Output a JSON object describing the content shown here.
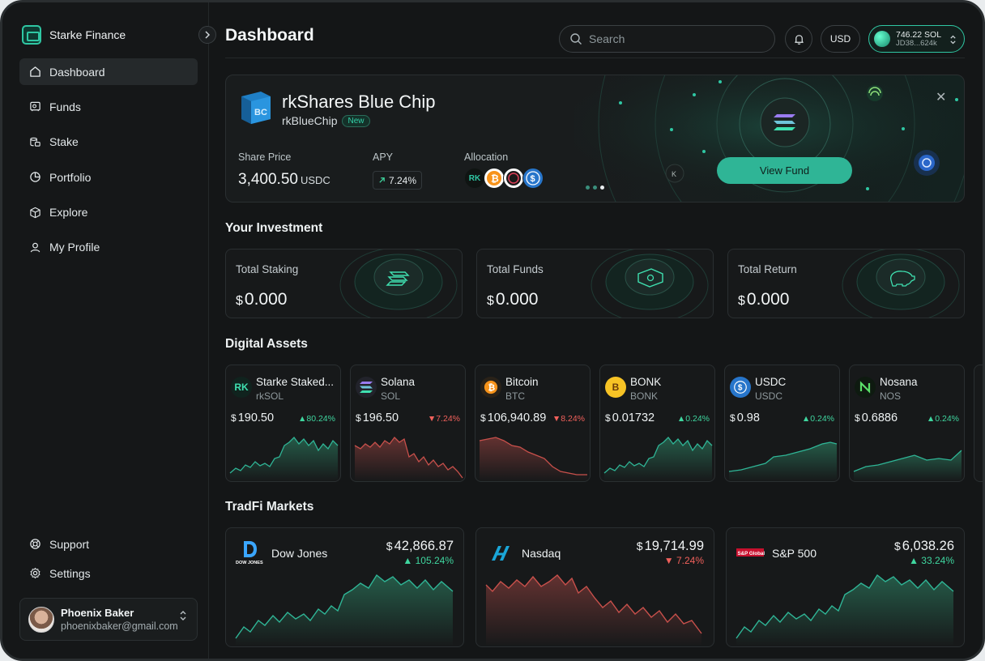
{
  "brand": {
    "name": "Starke Finance"
  },
  "nav": {
    "items": [
      {
        "label": "Dashboard",
        "icon": "home-icon"
      },
      {
        "label": "Funds",
        "icon": "funds-icon"
      },
      {
        "label": "Stake",
        "icon": "stake-icon"
      },
      {
        "label": "Portfolio",
        "icon": "portfolio-icon"
      },
      {
        "label": "Explore",
        "icon": "explore-icon"
      },
      {
        "label": "My Profile",
        "icon": "profile-icon"
      }
    ],
    "bottom": [
      {
        "label": "Support",
        "icon": "support-icon"
      },
      {
        "label": "Settings",
        "icon": "gear-icon"
      }
    ]
  },
  "user": {
    "name": "Phoenix Baker",
    "email": "phoenixbaker@gmail.com"
  },
  "header": {
    "title": "Dashboard",
    "search_placeholder": "Search",
    "currency": "USD",
    "wallet_balance": "746.22 SOL",
    "wallet_address": "JD38...624k"
  },
  "banner": {
    "fund_name": "rkShares Blue Chip",
    "ticker": "rkBlueChip",
    "badge": "New",
    "share_price_label": "Share Price",
    "share_price": "3,400.50",
    "share_price_unit": "USDC",
    "apy_label": "APY",
    "apy": "7.24%",
    "allocation_label": "Allocation",
    "cta": "View Fund"
  },
  "investment": {
    "title": "Your Investment",
    "cards": [
      {
        "label": "Total Staking",
        "currency": "$",
        "value": "0.000"
      },
      {
        "label": "Total Funds",
        "currency": "$",
        "value": "0.000"
      },
      {
        "label": "Total Return",
        "currency": "$",
        "value": "0.000"
      }
    ]
  },
  "digital_assets": {
    "title": "Digital Assets",
    "items": [
      {
        "name": "Starke Staked...",
        "symbol": "rkSOL",
        "currency": "$",
        "price": "190.50",
        "change": "80.24%",
        "direction": "up",
        "color": "#3fd69f"
      },
      {
        "name": "Solana",
        "symbol": "SOL",
        "currency": "$",
        "price": "196.50",
        "change": "7.24%",
        "direction": "down",
        "color": "#f0605b"
      },
      {
        "name": "Bitcoin",
        "symbol": "BTC",
        "currency": "$",
        "price": "106,940.89",
        "change": "8.24%",
        "direction": "down",
        "color": "#f0605b"
      },
      {
        "name": "BONK",
        "symbol": "BONK",
        "currency": "$",
        "price": "0.01732",
        "change": "0.24%",
        "direction": "up",
        "color": "#3fd69f"
      },
      {
        "name": "USDC",
        "symbol": "USDC",
        "currency": "$",
        "price": "0.98",
        "change": "0.24%",
        "direction": "up",
        "color": "#3fd69f"
      },
      {
        "name": "Nosana",
        "symbol": "NOS",
        "currency": "$",
        "price": "0.6886",
        "change": "0.24%",
        "direction": "up",
        "color": "#3fd69f"
      }
    ]
  },
  "tradfi": {
    "title": "TradFi Markets",
    "items": [
      {
        "name": "Dow Jones",
        "logo_text": "DOW JONES",
        "currency": "$",
        "price": "42,866.87",
        "change": "105.24%",
        "direction": "up"
      },
      {
        "name": "Nasdaq",
        "currency": "$",
        "price": "19,714.99",
        "change": "7.24%",
        "direction": "down"
      },
      {
        "name": "S&P 500",
        "logo_text": "S&P Global",
        "currency": "$",
        "price": "6,038.26",
        "change": "33.24%",
        "direction": "up"
      }
    ]
  },
  "colors": {
    "accent": "#2fc7a3",
    "up": "#3fd69f",
    "down": "#f0605b",
    "background": "#141617"
  }
}
